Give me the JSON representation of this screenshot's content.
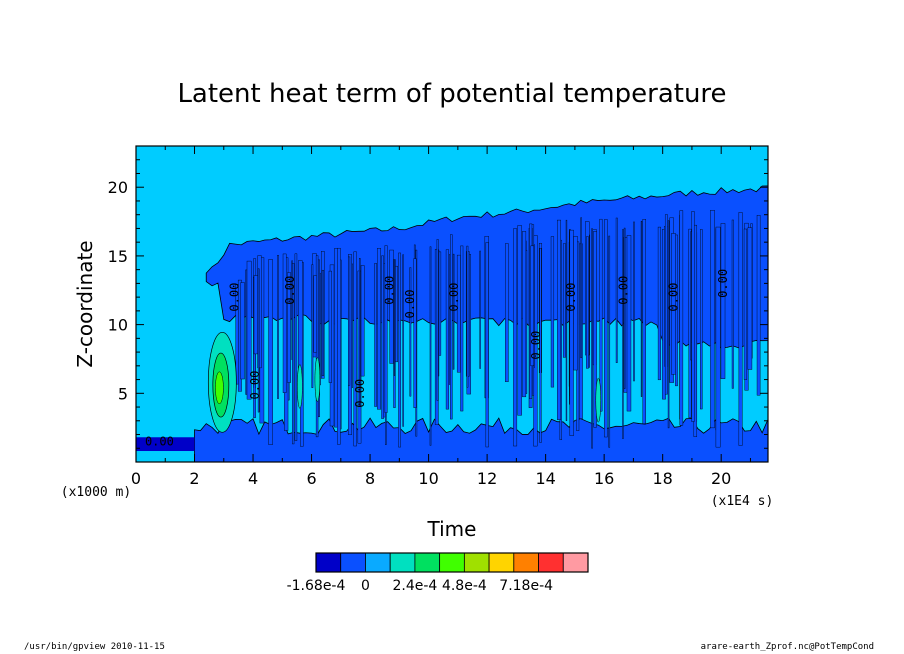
{
  "chart_data": {
    "type": "heatmap",
    "title": "Latent heat term of potential temperature",
    "xlabel": "Time",
    "ylabel": "Z-coordinate",
    "x_unit": "(x1E4 s)",
    "y_unit": "(x1000 m)",
    "xlim": [
      0,
      21.6
    ],
    "ylim": [
      0,
      23
    ],
    "x_ticks": [
      0,
      2,
      4,
      6,
      8,
      10,
      12,
      14,
      16,
      18,
      20
    ],
    "y_ticks": [
      5,
      10,
      15,
      20
    ],
    "cloud_top": [
      {
        "x": 2.6,
        "z": 14.0
      },
      {
        "x": 3.2,
        "z": 15.8
      },
      {
        "x": 5.0,
        "z": 16.2
      },
      {
        "x": 7.0,
        "z": 16.6
      },
      {
        "x": 9.0,
        "z": 17.0
      },
      {
        "x": 11.0,
        "z": 17.8
      },
      {
        "x": 13.0,
        "z": 18.2
      },
      {
        "x": 15.0,
        "z": 18.8
      },
      {
        "x": 17.0,
        "z": 19.2
      },
      {
        "x": 19.0,
        "z": 19.6
      },
      {
        "x": 21.6,
        "z": 19.9
      }
    ],
    "contour_labels": [
      {
        "text": "0.00",
        "x": 0.8,
        "z": 1.2
      },
      {
        "text": "0.00",
        "x": 3.5,
        "z": 12.0
      },
      {
        "text": "0.00",
        "x": 4.2,
        "z": 5.6
      },
      {
        "text": "0.00",
        "x": 5.4,
        "z": 12.5
      },
      {
        "text": "0.00",
        "x": 7.8,
        "z": 5.0
      },
      {
        "text": "0.00",
        "x": 8.8,
        "z": 12.5
      },
      {
        "text": "0.00",
        "x": 9.5,
        "z": 11.5
      },
      {
        "text": "0.00",
        "x": 11.0,
        "z": 12.0
      },
      {
        "text": "0.00",
        "x": 13.8,
        "z": 8.5
      },
      {
        "text": "0.00",
        "x": 15.0,
        "z": 12.0
      },
      {
        "text": "0.00",
        "x": 16.8,
        "z": 12.5
      },
      {
        "text": "0.00",
        "x": 18.5,
        "z": 12.0
      },
      {
        "text": "0.00",
        "x": 20.2,
        "z": 13.0
      }
    ],
    "colorbar": {
      "colors": [
        "#0000c8",
        "#0a50ff",
        "#0aaaff",
        "#00e0c0",
        "#00e060",
        "#40ff00",
        "#a0e000",
        "#ffd400",
        "#ff8000",
        "#ff3030",
        "#ff9aa2"
      ],
      "labels": [
        "-1.68e-4",
        "0",
        "2.4e-4",
        "4.8e-4",
        "7.18e-4"
      ]
    },
    "background_color": "#00ccff"
  },
  "footer": {
    "left": "/usr/bin/gpview   2010-11-15",
    "right": "arare-earth_Zprof.nc@PotTempCond"
  }
}
